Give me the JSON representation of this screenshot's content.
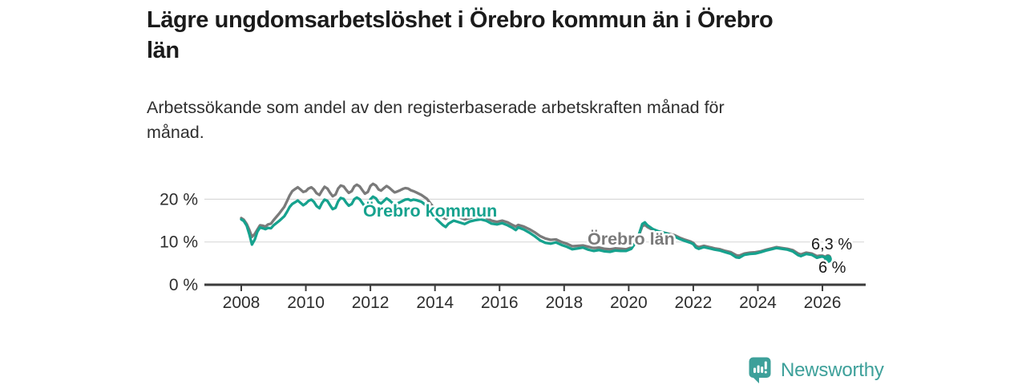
{
  "header": {
    "title": "Lägre ungdomsarbetslöshet i Örebro kommun än i Örebro län",
    "title_lines": [
      "Lägre ungdomsarbetslöshet i Örebro kommun än i Örebro",
      "län"
    ],
    "subtitle": "Arbetssökande som andel av den registerbaserade arbetskraften månad för månad.",
    "subtitle_lines": [
      "Arbetssökande som andel av den registerbaserade arbetskraften månad för",
      "månad."
    ]
  },
  "logo": {
    "text": "Newsworthy",
    "color": "#3da09a",
    "icon": "newsworthy-speech-bubble-bar-chart-icon"
  },
  "chart_data": {
    "type": "line",
    "title": "Lägre ungdomsarbetslöshet i Örebro kommun än i Örebro län",
    "xlabel": "",
    "ylabel": "",
    "grid": "horizontal",
    "legend_position": "inline-labels",
    "ylim": [
      0,
      25
    ],
    "x_axis": {
      "ticks": [
        "2008",
        "2010",
        "2012",
        "2014",
        "2016",
        "2018",
        "2020",
        "2022",
        "2024",
        "2026"
      ]
    },
    "y_axis": {
      "ticks": [
        {
          "value": 0,
          "label": "0 %"
        },
        {
          "value": 10,
          "label": "10 %"
        },
        {
          "value": 20,
          "label": "20 %"
        }
      ]
    },
    "colors": {
      "kommun": "#16a28e",
      "lan": "#7a7a7a",
      "axis": "#3b3b3b",
      "grid": "#d9d9d9",
      "end_label": "#1a1a1a"
    },
    "x": [
      2008.0,
      2008.08,
      2008.17,
      2008.25,
      2008.33,
      2008.42,
      2008.5,
      2008.58,
      2008.67,
      2008.75,
      2008.83,
      2008.92,
      2009.0,
      2009.17,
      2009.33,
      2009.42,
      2009.5,
      2009.58,
      2009.67,
      2009.75,
      2009.83,
      2009.92,
      2010.0,
      2010.08,
      2010.17,
      2010.25,
      2010.33,
      2010.42,
      2010.5,
      2010.58,
      2010.67,
      2010.75,
      2010.83,
      2010.92,
      2011.0,
      2011.08,
      2011.17,
      2011.25,
      2011.33,
      2011.42,
      2011.5,
      2011.58,
      2011.67,
      2011.75,
      2011.83,
      2011.92,
      2012.0,
      2012.08,
      2012.17,
      2012.25,
      2012.33,
      2012.42,
      2012.5,
      2012.58,
      2012.67,
      2012.75,
      2012.83,
      2012.92,
      2013.0,
      2013.08,
      2013.17,
      2013.25,
      2013.33,
      2013.42,
      2013.58,
      2013.75,
      2013.92,
      2014.08,
      2014.25,
      2014.33,
      2014.42,
      2014.58,
      2014.75,
      2014.92,
      2015.08,
      2015.25,
      2015.42,
      2015.58,
      2015.75,
      2015.92,
      2016.08,
      2016.25,
      2016.42,
      2016.5,
      2016.58,
      2016.75,
      2016.92,
      2017.08,
      2017.25,
      2017.42,
      2017.58,
      2017.75,
      2017.92,
      2018.08,
      2018.25,
      2018.42,
      2018.58,
      2018.75,
      2018.92,
      2019.08,
      2019.25,
      2019.42,
      2019.58,
      2019.75,
      2019.92,
      2020.08,
      2020.25,
      2020.42,
      2020.5,
      2020.58,
      2020.75,
      2020.92,
      2021.08,
      2021.25,
      2021.42,
      2021.58,
      2021.75,
      2021.92,
      2022.0,
      2022.08,
      2022.17,
      2022.33,
      2022.5,
      2022.67,
      2022.83,
      2023.0,
      2023.17,
      2023.33,
      2023.42,
      2023.58,
      2023.75,
      2023.92,
      2024.08,
      2024.25,
      2024.42,
      2024.58,
      2024.75,
      2024.92,
      2025.08,
      2025.25,
      2025.33,
      2025.5,
      2025.67,
      2025.83,
      2025.92,
      2026.0,
      2026.17
    ],
    "series": [
      {
        "name": "Örebro kommun",
        "color": "#16a28e",
        "end_label": "6 %",
        "end_value": 6.0,
        "values": [
          15.3,
          14.9,
          13.8,
          11.8,
          9.4,
          10.6,
          12.4,
          13.4,
          13.2,
          13.0,
          13.3,
          13.2,
          13.9,
          14.9,
          16.0,
          17.1,
          18.2,
          18.9,
          19.3,
          19.7,
          19.2,
          18.6,
          19.0,
          19.6,
          19.9,
          19.4,
          18.4,
          17.9,
          19.1,
          19.9,
          19.6,
          18.6,
          17.7,
          18.0,
          19.5,
          20.3,
          20.1,
          19.2,
          18.5,
          18.9,
          20.0,
          20.4,
          20.0,
          19.1,
          18.3,
          18.7,
          20.0,
          20.6,
          20.2,
          19.3,
          19.0,
          19.6,
          20.2,
          19.8,
          19.2,
          18.8,
          19.0,
          19.3,
          19.6,
          19.9,
          20.0,
          19.7,
          19.9,
          19.8,
          19.4,
          18.4,
          16.4,
          15.1,
          13.9,
          13.5,
          14.3,
          15.0,
          14.6,
          14.2,
          14.8,
          15.1,
          15.3,
          15.0,
          14.3,
          14.1,
          14.4,
          13.9,
          13.2,
          12.8,
          13.4,
          12.9,
          12.2,
          11.4,
          10.4,
          9.8,
          9.6,
          9.9,
          9.3,
          8.9,
          8.3,
          8.5,
          8.7,
          8.2,
          7.9,
          8.1,
          7.8,
          7.7,
          8.0,
          7.9,
          7.9,
          8.4,
          10.2,
          14.2,
          14.6,
          13.9,
          13.0,
          12.5,
          12.2,
          11.8,
          11.3,
          10.7,
          10.2,
          9.8,
          9.5,
          8.7,
          8.4,
          8.8,
          8.5,
          8.2,
          8.0,
          7.6,
          7.2,
          6.4,
          6.3,
          7.0,
          7.2,
          7.3,
          7.6,
          8.0,
          8.3,
          8.6,
          8.4,
          8.2,
          7.8,
          6.9,
          6.7,
          7.2,
          7.0,
          6.3,
          6.5,
          6.6,
          6.0
        ]
      },
      {
        "name": "Örebro län",
        "color": "#7a7a7a",
        "end_label": "6,3 %",
        "end_value": 6.3,
        "values": [
          15.6,
          15.2,
          14.2,
          12.8,
          11.2,
          11.9,
          12.9,
          13.9,
          13.8,
          13.6,
          14.1,
          14.3,
          15.1,
          16.6,
          18.2,
          19.6,
          20.9,
          21.9,
          22.4,
          22.8,
          22.3,
          21.7,
          21.9,
          22.5,
          22.8,
          22.3,
          21.4,
          21.0,
          22.0,
          22.9,
          22.5,
          21.5,
          20.7,
          21.1,
          22.5,
          23.2,
          23.0,
          22.2,
          21.5,
          21.9,
          23.0,
          23.4,
          23.0,
          22.1,
          21.3,
          21.7,
          23.1,
          23.6,
          23.2,
          22.3,
          22.0,
          22.6,
          23.1,
          22.7,
          22.1,
          21.6,
          21.8,
          22.1,
          22.4,
          22.6,
          22.5,
          22.1,
          21.9,
          21.6,
          21.0,
          20.1,
          18.4,
          16.9,
          15.7,
          15.4,
          15.9,
          16.3,
          15.8,
          15.3,
          15.6,
          15.9,
          16.0,
          15.7,
          15.0,
          14.7,
          15.0,
          14.6,
          13.9,
          13.6,
          14.0,
          13.6,
          13.0,
          12.3,
          11.4,
          10.8,
          10.5,
          10.6,
          10.0,
          9.6,
          9.0,
          9.1,
          9.2,
          8.9,
          8.6,
          8.7,
          8.4,
          8.3,
          8.5,
          8.4,
          8.3,
          8.7,
          10.2,
          13.7,
          14.0,
          13.5,
          12.8,
          12.4,
          12.2,
          11.9,
          11.6,
          11.0,
          10.5,
          10.1,
          9.8,
          9.1,
          8.8,
          9.1,
          8.8,
          8.5,
          8.3,
          7.9,
          7.6,
          6.9,
          6.8,
          7.3,
          7.5,
          7.6,
          7.8,
          8.2,
          8.5,
          8.8,
          8.6,
          8.4,
          8.1,
          7.3,
          7.1,
          7.5,
          7.3,
          6.7,
          6.8,
          6.8,
          6.3
        ]
      }
    ]
  }
}
